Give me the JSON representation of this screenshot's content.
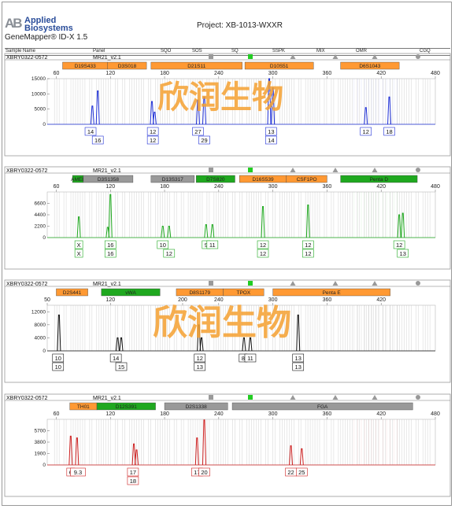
{
  "header": {
    "logo_lines": [
      "Applied",
      "Biosystems"
    ],
    "software": "GeneMapper® ID-X 1.5",
    "project": "Project: XB-1013-WXXR",
    "columns": [
      "Sample Name",
      "Panel",
      "SQO",
      "SOS",
      "SQ",
      "SSPK",
      "MIX",
      "OMR",
      "CGQ"
    ]
  },
  "watermark": "欣润生物",
  "colors": {
    "orange": "#ff9933",
    "gray": "#999999",
    "green": "#1fa81f",
    "blue": "#1e2fd6",
    "black": "#111111",
    "red": "#cc2020",
    "watermark": "#f4a030"
  },
  "chart_data": [
    {
      "type": "line",
      "sample": "XBRY0322-0572",
      "panel": "MR21_v2.1",
      "dye_color": "#1e2fd6",
      "xlim": [
        50,
        480
      ],
      "x_ticks": [
        60,
        120,
        180,
        240,
        300,
        360,
        420,
        480
      ],
      "ylim": [
        0,
        15000
      ],
      "y_ticks": [
        5000,
        10000,
        15000
      ],
      "loci": [
        {
          "name": "D19S433",
          "start": 67,
          "end": 117,
          "color": "orange"
        },
        {
          "name": "D3S018",
          "start": 117,
          "end": 160,
          "color": "orange"
        },
        {
          "name": "D21S11",
          "start": 165,
          "end": 266,
          "color": "orange"
        },
        {
          "name": "D10S51",
          "start": 269,
          "end": 345,
          "color": "orange"
        },
        {
          "name": "D6S1043",
          "start": 375,
          "end": 440,
          "color": "orange"
        }
      ],
      "peaks": [
        {
          "x": 100,
          "y": 6000
        },
        {
          "x": 106,
          "y": 11000
        },
        {
          "x": 166,
          "y": 7500
        },
        {
          "x": 169,
          "y": 4000
        },
        {
          "x": 217,
          "y": 8000
        },
        {
          "x": 224,
          "y": 9000
        },
        {
          "x": 296,
          "y": 16000
        },
        {
          "x": 300,
          "y": 12000
        },
        {
          "x": 403,
          "y": 5500
        },
        {
          "x": 429,
          "y": 9000
        }
      ],
      "alleles": [
        {
          "x": 98,
          "row1": "14",
          "row2": ""
        },
        {
          "x": 106,
          "row1": "",
          "row2": "16"
        },
        {
          "x": 167,
          "row1": "12",
          "row2": "12"
        },
        {
          "x": 217,
          "row1": "27",
          "row2": ""
        },
        {
          "x": 224,
          "row1": "",
          "row2": "29"
        },
        {
          "x": 298,
          "row1": "13",
          "row2": "14"
        },
        {
          "x": 403,
          "row1": "12",
          "row2": ""
        },
        {
          "x": 429,
          "row1": "18",
          "row2": ""
        }
      ]
    },
    {
      "type": "line",
      "sample": "XBRY0322-0572",
      "panel": "MR21_v2.1",
      "dye_color": "#1fa81f",
      "xlim": [
        50,
        480
      ],
      "x_ticks": [
        60,
        120,
        180,
        240,
        300,
        360,
        420,
        480
      ],
      "ylim": [
        0,
        8800
      ],
      "y_ticks": [
        2200,
        4400,
        6600
      ],
      "loci": [
        {
          "name": "AMEL",
          "start": 78,
          "end": 90,
          "color": "green"
        },
        {
          "name": "D3S1358",
          "start": 90,
          "end": 145,
          "color": "gray"
        },
        {
          "name": "D13S317",
          "start": 165,
          "end": 213,
          "color": "gray"
        },
        {
          "name": "D7S820",
          "start": 215,
          "end": 258,
          "color": "green"
        },
        {
          "name": "D16S539",
          "start": 263,
          "end": 315,
          "color": "orange"
        },
        {
          "name": "CSF1PO",
          "start": 315,
          "end": 360,
          "color": "orange"
        },
        {
          "name": "Penta D",
          "start": 375,
          "end": 460,
          "color": "green"
        }
      ],
      "peaks": [
        {
          "x": 85,
          "y": 4000
        },
        {
          "x": 117,
          "y": 2000
        },
        {
          "x": 120,
          "y": 8300
        },
        {
          "x": 178,
          "y": 2200
        },
        {
          "x": 185,
          "y": 2200
        },
        {
          "x": 226,
          "y": 2500
        },
        {
          "x": 233,
          "y": 2500
        },
        {
          "x": 289,
          "y": 6000
        },
        {
          "x": 339,
          "y": 6300
        },
        {
          "x": 440,
          "y": 4400
        },
        {
          "x": 444,
          "y": 4700
        }
      ],
      "alleles": [
        {
          "x": 85,
          "row1": "X",
          "row2": "X"
        },
        {
          "x": 120,
          "row1": "16",
          "row2": "16"
        },
        {
          "x": 178,
          "row1": "10",
          "row2": ""
        },
        {
          "x": 185,
          "row1": "",
          "row2": "12"
        },
        {
          "x": 226,
          "row1": "9",
          "row2": ""
        },
        {
          "x": 233,
          "row1": "11",
          "row2": ""
        },
        {
          "x": 289,
          "row1": "12",
          "row2": "12"
        },
        {
          "x": 339,
          "row1": "12",
          "row2": "12"
        },
        {
          "x": 440,
          "row1": "12",
          "row2": ""
        },
        {
          "x": 444,
          "row1": "",
          "row2": "13"
        }
      ]
    },
    {
      "type": "line",
      "sample": "XBRY0322-0572",
      "panel": "MR21_v2.1",
      "dye_color": "#111111",
      "xlim": [
        50,
        480
      ],
      "x_ticks": [
        50,
        120,
        200,
        240,
        300,
        360,
        420
      ],
      "ylim": [
        0,
        14000
      ],
      "y_ticks": [
        4000,
        8000,
        12000
      ],
      "loci": [
        {
          "name": "D2S441",
          "start": 60,
          "end": 95,
          "color": "orange"
        },
        {
          "name": "vWA",
          "start": 110,
          "end": 175,
          "color": "green"
        },
        {
          "name": "D8S1179",
          "start": 193,
          "end": 245,
          "color": "orange"
        },
        {
          "name": "TPOX",
          "start": 245,
          "end": 290,
          "color": "orange"
        },
        {
          "name": "Penta E",
          "start": 300,
          "end": 430,
          "color": "orange"
        }
      ],
      "peaks": [
        {
          "x": 63,
          "y": 11000
        },
        {
          "x": 128,
          "y": 4000
        },
        {
          "x": 132,
          "y": 4000
        },
        {
          "x": 218,
          "y": 8000
        },
        {
          "x": 221,
          "y": 4000
        },
        {
          "x": 268,
          "y": 4000
        },
        {
          "x": 275,
          "y": 4000
        },
        {
          "x": 328,
          "y": 11000
        }
      ],
      "alleles": [
        {
          "x": 62,
          "row1": "10",
          "row2": "10"
        },
        {
          "x": 126,
          "row1": "14",
          "row2": ""
        },
        {
          "x": 132,
          "row1": "",
          "row2": "15"
        },
        {
          "x": 219,
          "row1": "12",
          "row2": "13"
        },
        {
          "x": 267,
          "row1": "8",
          "row2": ""
        },
        {
          "x": 275,
          "row1": "11",
          "row2": ""
        },
        {
          "x": 328,
          "row1": "13",
          "row2": "13"
        }
      ]
    },
    {
      "type": "line",
      "sample": "XBRY0322-0572",
      "panel": "MR21_v2.1",
      "dye_color": "#cc2020",
      "xlim": [
        50,
        480
      ],
      "x_ticks": [
        60,
        120,
        180,
        240,
        300,
        360,
        420,
        480
      ],
      "ylim": [
        0,
        7600
      ],
      "y_ticks": [
        1900,
        3800,
        5700
      ],
      "loci": [
        {
          "name": "TH01",
          "start": 75,
          "end": 105,
          "color": "orange"
        },
        {
          "name": "D12S391",
          "start": 105,
          "end": 170,
          "color": "green"
        },
        {
          "name": "D2S1338",
          "start": 180,
          "end": 250,
          "color": "gray"
        },
        {
          "name": "FGA",
          "start": 255,
          "end": 455,
          "color": "gray"
        }
      ],
      "peaks": [
        {
          "x": 76,
          "y": 4800
        },
        {
          "x": 83,
          "y": 4500
        },
        {
          "x": 146,
          "y": 3500
        },
        {
          "x": 149,
          "y": 2500
        },
        {
          "x": 216,
          "y": 4500
        },
        {
          "x": 224,
          "y": 7500
        },
        {
          "x": 320,
          "y": 3200
        },
        {
          "x": 332,
          "y": 2700
        }
      ],
      "alleles": [
        {
          "x": 76,
          "row1": "6",
          "row2": ""
        },
        {
          "x": 84,
          "row1": "9.3",
          "row2": ""
        },
        {
          "x": 145,
          "row1": "17",
          "row2": "18"
        },
        {
          "x": 216,
          "row1": "17",
          "row2": ""
        },
        {
          "x": 224,
          "row1": "20",
          "row2": ""
        },
        {
          "x": 320,
          "row1": "22",
          "row2": ""
        },
        {
          "x": 332,
          "row1": "25",
          "row2": ""
        }
      ]
    }
  ]
}
